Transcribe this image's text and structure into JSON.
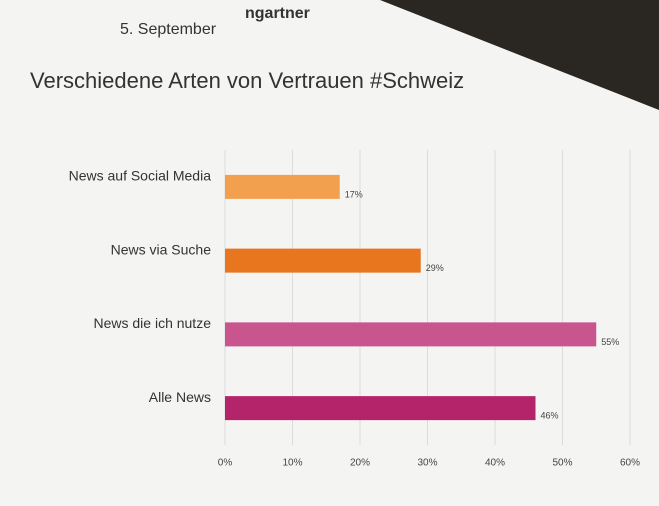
{
  "header": {
    "author": "ngartner",
    "date": "5. September"
  },
  "chart_data": {
    "type": "hbar",
    "title": "Verschiedene Arten von Vertrauen #Schweiz",
    "categories": [
      "News auf Social Media",
      "News via Suche",
      "News die ich nutze",
      "Alle News"
    ],
    "values": [
      17,
      29,
      55,
      46
    ],
    "value_labels": [
      "17%",
      "29%",
      "55%",
      "46%"
    ],
    "colors": [
      "#f2a04e",
      "#e8761e",
      "#c8558e",
      "#b3246a"
    ],
    "xlim": [
      0,
      60
    ],
    "xticks": [
      {
        "value": 0,
        "label": "0%"
      },
      {
        "value": 10,
        "label": "10%"
      },
      {
        "value": 20,
        "label": "20%"
      },
      {
        "value": 30,
        "label": "30%"
      },
      {
        "value": 40,
        "label": "40%"
      },
      {
        "value": 50,
        "label": "50%"
      },
      {
        "value": 60,
        "label": "60%"
      }
    ],
    "grid": true
  }
}
